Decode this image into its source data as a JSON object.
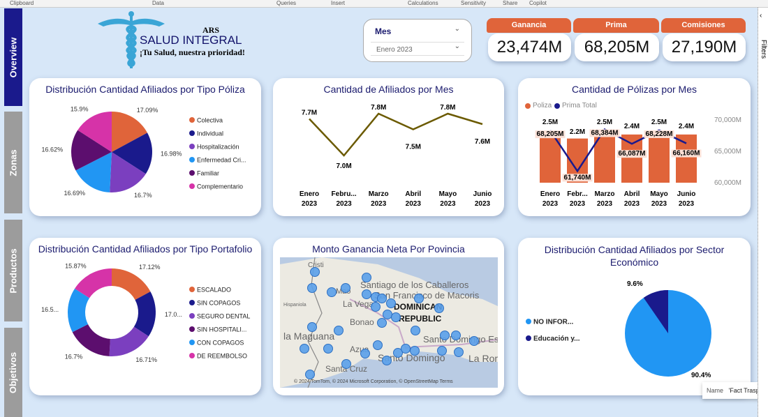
{
  "ribbon": [
    "Clipboard",
    "Data",
    "Queries",
    "Insert",
    "Calculations",
    "Sensitivity",
    "Share",
    "Copilot"
  ],
  "nav": [
    {
      "label": "Overview",
      "active": true
    },
    {
      "label": "Zonas"
    },
    {
      "label": "Productos"
    },
    {
      "label": "Objetivos"
    }
  ],
  "logo": {
    "ars": "ARS",
    "name": "SALUD INTEGRAL",
    "tagline": "¡Tu Salud, nuestra prioridad!"
  },
  "slicer": {
    "title": "Mes",
    "value": "Enero 2023"
  },
  "kpis": [
    {
      "label": "Ganancia",
      "value": "23,474M"
    },
    {
      "label": "Prima",
      "value": "68,205M"
    },
    {
      "label": "Comisiones",
      "value": "27,190M"
    }
  ],
  "colors": {
    "accent": "#e0643a",
    "navy": "#1a1a8c",
    "kpi_header": "#e0643a"
  },
  "side_panel": {
    "filters": "Filters"
  },
  "tooltip": {
    "name_label": "Name",
    "name_value": "'Fact Traspaso"
  },
  "chart_data": [
    {
      "type": "pie",
      "title": "Distribución Cantidad Afiliados por Tipo Póliza",
      "categories": [
        "Colectiva",
        "Individual",
        "Hospitalización",
        "Enfermedad Cri...",
        "Familiar",
        "Complementario"
      ],
      "values": [
        17.09,
        16.98,
        16.7,
        16.69,
        16.62,
        15.9
      ],
      "labels": [
        "17.09%",
        "16.98%",
        "16.7%",
        "16.69%",
        "16.62%",
        "15.9%"
      ],
      "colors": [
        "#e0643a",
        "#1a1a8c",
        "#7b3fbf",
        "#2196f3",
        "#5c0e6e",
        "#d633a8"
      ],
      "legend": "right"
    },
    {
      "type": "line",
      "title": "Cantidad de Afiliados por Mes",
      "categories": [
        "Enero 2023",
        "Febru... 2023",
        "Marzo 2023",
        "Abril 2023",
        "Mayo 2023",
        "Junio 2023"
      ],
      "values": [
        7.7,
        7.0,
        7.8,
        7.5,
        7.8,
        7.6
      ],
      "labels": [
        "7.7M",
        "7.0M",
        "7.8M",
        "7.5M",
        "7.8M",
        "7.6M"
      ],
      "color": "#6b5a00"
    },
    {
      "type": "bar+line",
      "title": "Cantidad de Pólizas por Mes",
      "categories": [
        "Enero 2023",
        "Febr... 2023",
        "Marzo 2023",
        "Abril 2023",
        "Mayo 2023",
        "Junio 2023"
      ],
      "series": [
        {
          "name": "Poliza",
          "type": "bar",
          "values": [
            2.5,
            2.2,
            2.5,
            2.4,
            2.5,
            2.4
          ],
          "labels": [
            "2.5M",
            "2.2M",
            "2.5M",
            "2.4M",
            "2.5M",
            "2.4M"
          ],
          "color": "#e0643a"
        },
        {
          "name": "Prima Total",
          "type": "line",
          "values": [
            68205,
            61740,
            68384,
            66087,
            68228,
            66160
          ],
          "labels": [
            "68,205M",
            "61,740M",
            "68,384M",
            "66,087M",
            "68,228M",
            "66,160M"
          ],
          "color": "#1a1a8c"
        }
      ],
      "y2_ticks": [
        "70,000M",
        "65,000M",
        "60,000M"
      ],
      "y2lim": [
        60000,
        70000
      ],
      "legend": "top-left"
    },
    {
      "type": "pie",
      "donut": true,
      "title": "Distribución Cantidad Afiliados por Tipo Portafolio",
      "categories": [
        "ESCALADO",
        "SIN COPAGOS",
        "SEGURO DENTAL",
        "SIN HOSPITALI...",
        "CON COPAGOS",
        "DE REEMBOLSO"
      ],
      "values": [
        17.12,
        17.0,
        16.71,
        16.7,
        16.5,
        15.87
      ],
      "labels": [
        "17.12%",
        "17.0...",
        "16.71%",
        "16.7%",
        "16.5...",
        "15.87%"
      ],
      "colors": [
        "#e0643a",
        "#1a1a8c",
        "#7b3fbf",
        "#5c0e6e",
        "#2196f3",
        "#d633a8"
      ],
      "legend": "right"
    },
    {
      "type": "map",
      "title": "Monto Ganancia Neta Por Povincia",
      "place_labels": [
        "Cristi",
        "Santiago de los Caballeros",
        "San Francisco de Macoris",
        "Mao",
        "La Vega",
        "DOMINICAN",
        "REPUBLIC",
        "Bonao",
        "la Maguana",
        "Santo Domingo Este",
        "Azua",
        "Santo Domingo",
        "La Romana",
        "Santa Cruz",
        "Hispaniola"
      ],
      "attribution": "© 2024 TomTom, © 2024 Microsoft Corporation, © OpenStreetMap  Terms"
    },
    {
      "type": "pie",
      "title": "Distribución Cantidad Afiliados por Sector Económico",
      "categories": [
        "NO INFOR...",
        "Educación y..."
      ],
      "values": [
        90.4,
        9.6
      ],
      "labels": [
        "90.4%",
        "9.6%"
      ],
      "colors": [
        "#2196f3",
        "#1a1a8c"
      ],
      "legend": "left"
    }
  ]
}
